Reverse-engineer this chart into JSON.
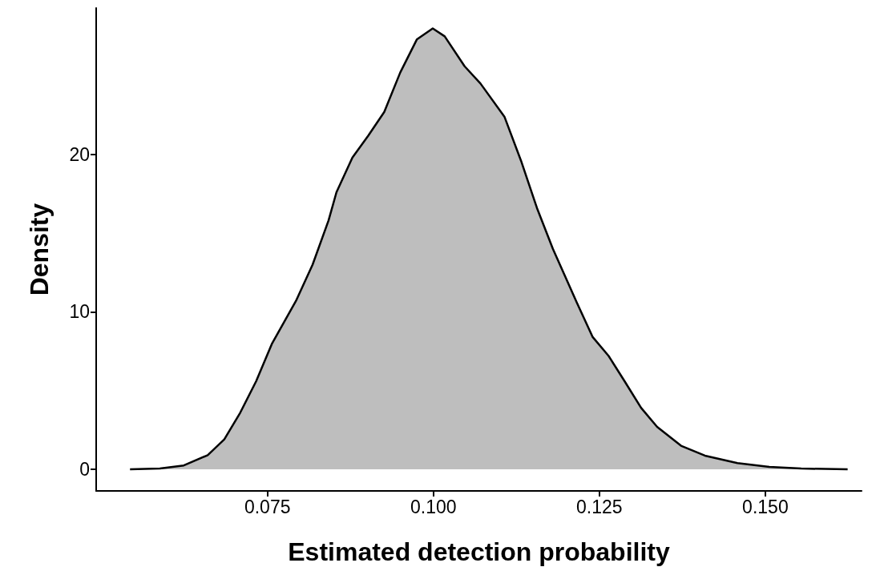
{
  "chart_data": {
    "type": "area",
    "xlabel": "Estimated detection probability",
    "ylabel": "Density",
    "x": [
      0.0543,
      0.0588,
      0.0624,
      0.066,
      0.0685,
      0.0709,
      0.0733,
      0.0757,
      0.0793,
      0.0818,
      0.0842,
      0.0854,
      0.0878,
      0.0902,
      0.0926,
      0.095,
      0.0975,
      0.0999,
      0.1017,
      0.1047,
      0.1071,
      0.1107,
      0.1132,
      0.1156,
      0.118,
      0.1216,
      0.124,
      0.1264,
      0.1288,
      0.1313,
      0.1337,
      0.1373,
      0.1409,
      0.1458,
      0.1506,
      0.1554,
      0.1624
    ],
    "series": [
      {
        "color": "#bebebe",
        "values": [
          0,
          0.05,
          0.25,
          0.9,
          1.9,
          3.6,
          5.6,
          8.0,
          10.7,
          13,
          15.8,
          17.6,
          19.8,
          21.2,
          22.7,
          25.2,
          27.3,
          28,
          27.5,
          25.6,
          24.5,
          22.4,
          19.6,
          16.6,
          14,
          10.6,
          8.4,
          7.2,
          5.6,
          3.9,
          2.7,
          1.5,
          0.87,
          0.4,
          0.15,
          0.05,
          0
        ]
      }
    ],
    "xlim": [
      0.0492,
      0.1645
    ],
    "xticks": [
      0.075,
      {
        "value": 0.1,
        "label": "0.100"
      },
      {
        "value": 0.125,
        "label": "0.125"
      },
      {
        "value": 0.15,
        "label": "0.150"
      }
    ],
    "ylim": [
      -1.37,
      29.3
    ],
    "yticks": [
      0,
      10,
      20
    ],
    "marker": "none",
    "line_style": "solid"
  }
}
